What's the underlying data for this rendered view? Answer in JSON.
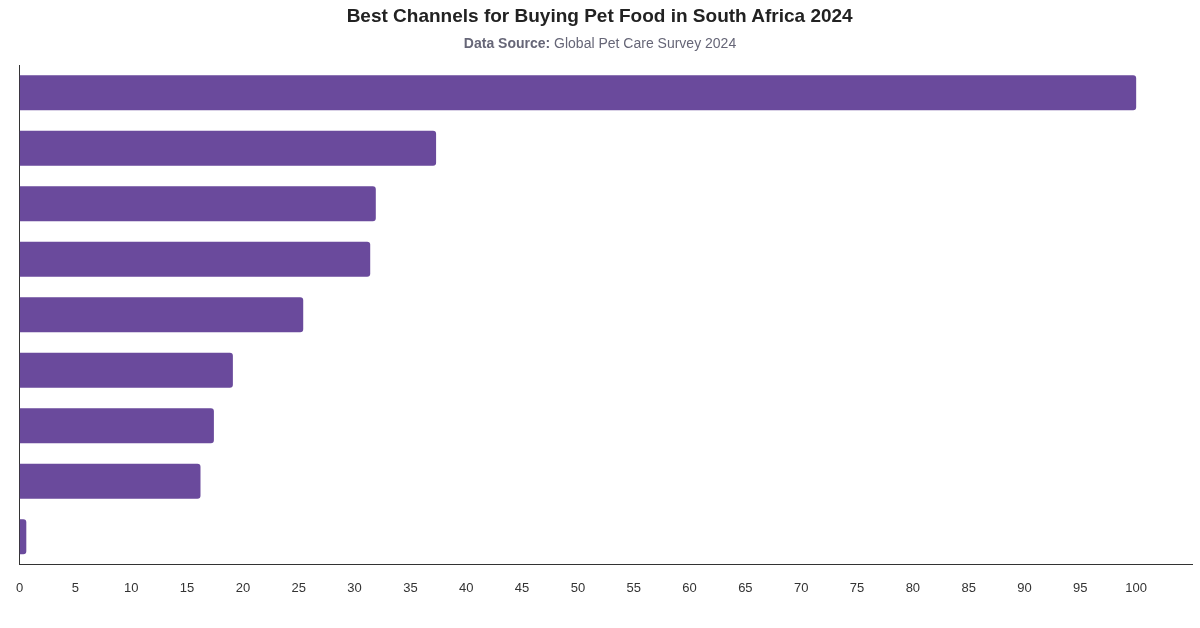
{
  "chart_data": {
    "type": "bar",
    "orientation": "horizontal",
    "title": "Best Channels for Buying Pet Food in South Africa 2024",
    "subtitle": "Data Source: Global Pet Care Survey 2024",
    "categories": [
      null,
      null,
      null,
      null,
      null,
      null,
      null,
      null,
      null
    ],
    "values": [
      100,
      37.3,
      31.9,
      31.4,
      25.4,
      19.1,
      17.4,
      16.2,
      0.6
    ],
    "color": "#6a4a9c",
    "xlim": [
      0,
      105
    ],
    "xticks": [
      0,
      5,
      10,
      15,
      20,
      25,
      30,
      35,
      40,
      45,
      50,
      55,
      60,
      65,
      70,
      75,
      80,
      85,
      90,
      95,
      100
    ]
  }
}
